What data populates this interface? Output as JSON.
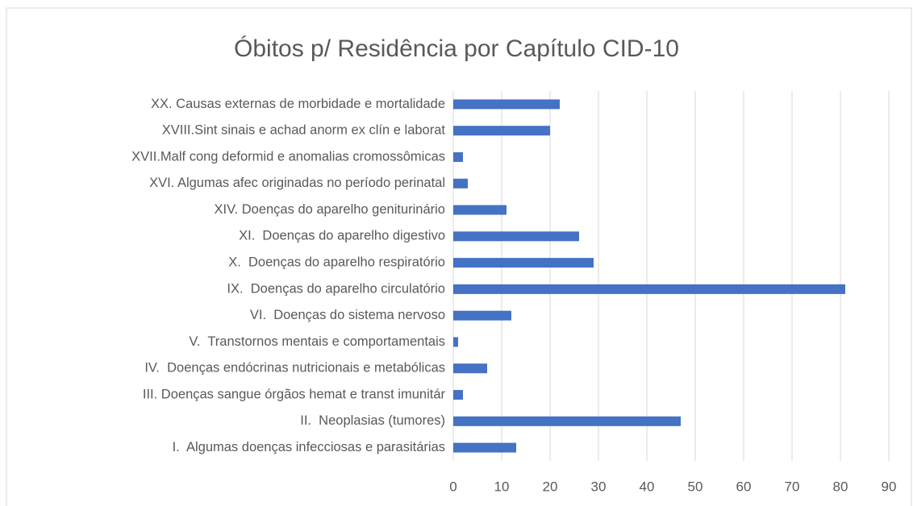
{
  "chart_data": {
    "type": "bar",
    "orientation": "horizontal",
    "title": "Óbitos p/ Residência por Capítulo CID-10",
    "categories": [
      "I.  Algumas doenças infecciosas e parasitárias",
      "II.  Neoplasias (tumores)",
      "III. Doenças sangue órgãos hemat e transt imunitár",
      "IV.  Doenças endócrinas nutricionais e metabólicas",
      "V.  Transtornos mentais e comportamentais",
      "VI.  Doenças do sistema nervoso",
      "IX.  Doenças do aparelho circulatório",
      "X.  Doenças do aparelho respiratório",
      "XI.  Doenças do aparelho digestivo",
      "XIV. Doenças do aparelho geniturinário",
      "XVI. Algumas afec originadas no período perinatal",
      "XVII.Malf cong deformid e anomalias cromossômicas",
      "XVIII.Sint sinais e achad anorm ex clín e laborat",
      "XX. Causas externas de morbidade e mortalidade"
    ],
    "values": [
      13,
      47,
      2,
      7,
      1,
      12,
      81,
      29,
      26,
      11,
      3,
      2,
      20,
      22
    ],
    "color": "#4472c4",
    "xlim": [
      0,
      90
    ],
    "xticks": [
      0,
      10,
      20,
      30,
      40,
      50,
      60,
      70,
      80,
      90
    ],
    "grid": true
  }
}
